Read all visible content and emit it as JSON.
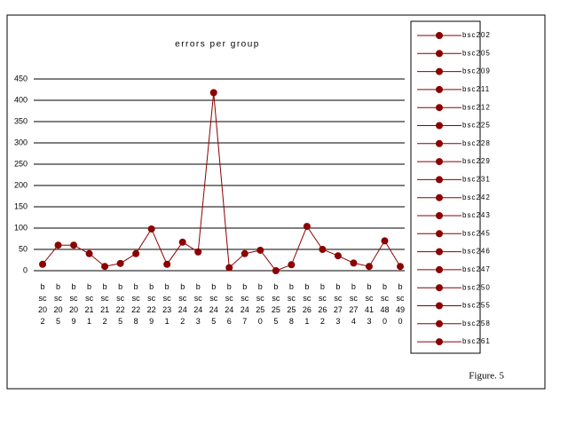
{
  "chart_data": {
    "type": "line",
    "title": "errors per group",
    "categories": [
      "bsc202",
      "bsc205",
      "bsc209",
      "bsc211",
      "bsc212",
      "bsc225",
      "bsc228",
      "bsc229",
      "bsc231",
      "bsc242",
      "bsc243",
      "bsc245",
      "bsc246",
      "bsc247",
      "bsc250",
      "bsc255",
      "bsc258",
      "bsc261",
      "bsc262",
      "bsc273",
      "bsc274",
      "bsc413",
      "bsc480",
      "bsc490"
    ],
    "values": [
      15,
      60,
      60,
      40,
      10,
      17,
      40,
      98,
      15,
      67,
      44,
      418,
      7,
      40,
      48,
      0,
      14,
      104,
      50,
      35,
      18,
      10,
      70,
      10
    ],
    "color": "#8b0000",
    "ylim": [
      0,
      450
    ],
    "yticks": [
      0,
      50,
      100,
      150,
      200,
      250,
      300,
      350,
      400,
      450
    ],
    "grid": true,
    "legend": [
      "bsc202",
      "bsc205",
      "bsc209",
      "bsc211",
      "bsc212",
      "bsc225",
      "bsc228",
      "bsc229",
      "bsc231",
      "bsc242",
      "bsc243",
      "bsc245",
      "bsc246",
      "bsc247",
      "bsc250",
      "bsc255",
      "bsc258",
      "bsc261"
    ],
    "annotation": "Figure. 5"
  }
}
